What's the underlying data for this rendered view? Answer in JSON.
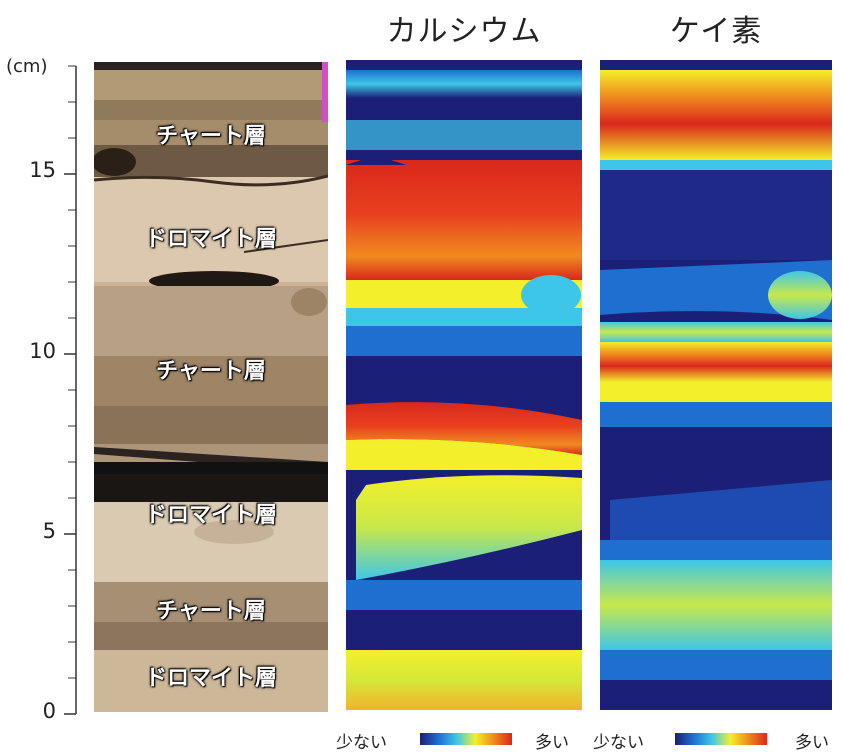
{
  "titles": {
    "calcium": "カルシウム",
    "silicon": "ケイ素"
  },
  "axis": {
    "unit": "(cm)",
    "ticks": [
      "15",
      "10",
      "5",
      "0"
    ]
  },
  "layers": [
    "チャート層",
    "ドロマイト層",
    "チャート層",
    "ドロマイト層",
    "チャート層",
    "ドロマイト層"
  ],
  "legend": [
    {
      "low": "少ない",
      "high": "多い"
    },
    {
      "low": "少ない",
      "high": "多い"
    }
  ],
  "colors": {
    "scale": [
      "#1b1f78",
      "#1e6fd0",
      "#3ec6e8",
      "#f3ef2a",
      "#f08a1f",
      "#d9281c"
    ],
    "background": "#ffffff"
  }
}
